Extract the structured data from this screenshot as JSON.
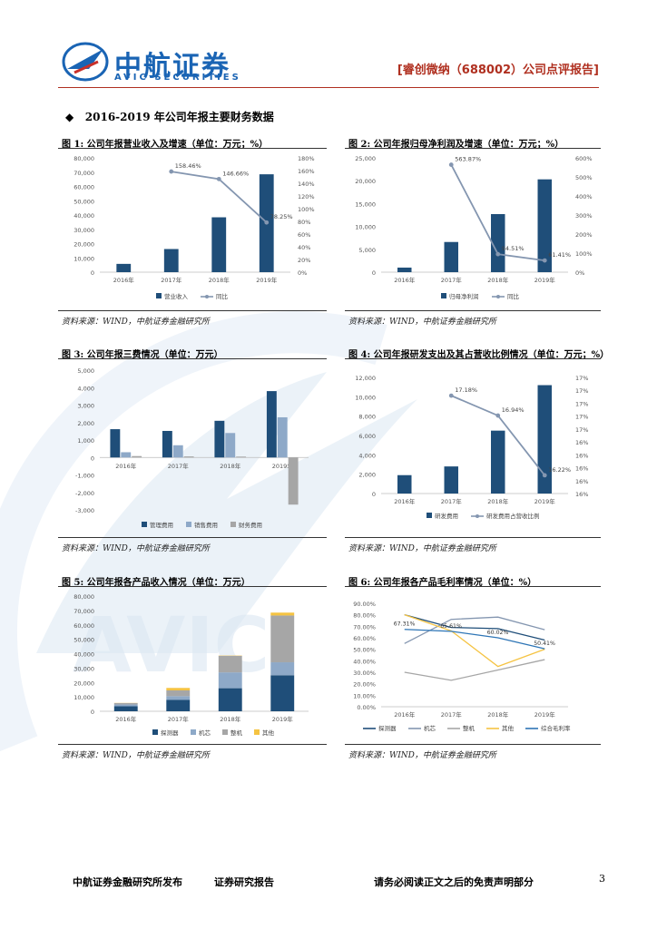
{
  "header": {
    "logo_cn": "中航证券",
    "logo_en": "AVIC SECURITIES",
    "report_title": "[睿创微纳（688002）公司点评报告]"
  },
  "section": {
    "title": "2016-2019 年公司年报主要财务数据"
  },
  "colors": {
    "navy": "#1f4e79",
    "lightblue": "#8ea9c8",
    "gray": "#a6a6a6",
    "yellow": "#f5c342",
    "line": "#8496b0",
    "red": "#b03020"
  },
  "charts": [
    {
      "title": "图 1: 公司年报营业收入及增速（单位：万元；%）",
      "source": "资料来源：WIND，中航证券金融研究所",
      "chart_data": {
        "type": "bar",
        "categories": [
          "2016年",
          "2017年",
          "2018年",
          "2019年"
        ],
        "series": [
          {
            "name": "营业收入",
            "kind": "bar",
            "axis": "left",
            "values": [
              5800,
              16200,
              38400,
              68500
            ]
          },
          {
            "name": "同比",
            "kind": "line",
            "axis": "right",
            "values": [
              null,
              158.46,
              146.66,
              78.25
            ],
            "labels": [
              "",
              "158.46%",
              "146.66%",
              "78.25%"
            ]
          }
        ],
        "left_ticks": [
          "0",
          "10,000",
          "20,000",
          "30,000",
          "40,000",
          "50,000",
          "60,000",
          "70,000",
          "80,000"
        ],
        "right_ticks": [
          "0%",
          "20%",
          "40%",
          "60%",
          "80%",
          "100%",
          "120%",
          "140%",
          "160%",
          "180%"
        ],
        "ylim": [
          0,
          80000
        ],
        "y2lim": [
          0,
          180
        ]
      }
    },
    {
      "title": "图 2: 公司年报归母净利润及增速（单位：万元；%）",
      "source": "资料来源：WIND，中航证券金融研究所",
      "chart_data": {
        "type": "bar",
        "categories": [
          "2016年",
          "2017年",
          "2018年",
          "2019年"
        ],
        "series": [
          {
            "name": "归母净利润",
            "kind": "bar",
            "axis": "left",
            "values": [
              1000,
              6600,
              12700,
              20300
            ]
          },
          {
            "name": "同比",
            "kind": "line",
            "axis": "right",
            "values": [
              null,
              563.87,
              94.51,
              61.41
            ],
            "labels": [
              "",
              "563.87%",
              "94.51%",
              "61.41%"
            ]
          }
        ],
        "left_ticks": [
          "0",
          "5,000",
          "10,000",
          "15,000",
          "20,000",
          "25,000"
        ],
        "right_ticks": [
          "0%",
          "100%",
          "200%",
          "300%",
          "400%",
          "500%",
          "600%"
        ],
        "ylim": [
          0,
          25000
        ],
        "y2lim": [
          0,
          600
        ]
      }
    },
    {
      "title": "图 3: 公司年报三费情况（单位：万元）",
      "source": "资料来源：WIND，中航证券金融研究所",
      "chart_data": {
        "type": "bar",
        "categories": [
          "2016年",
          "2017年",
          "2018年",
          "2019年"
        ],
        "series": [
          {
            "name": "管理费用",
            "kind": "bar",
            "axis": "left",
            "values": [
              1620,
              1520,
              2100,
              3800
            ]
          },
          {
            "name": "销售费用",
            "kind": "bar",
            "axis": "left",
            "values": [
              300,
              700,
              1400,
              2300
            ]
          },
          {
            "name": "财务费用",
            "kind": "bar",
            "axis": "left",
            "values": [
              80,
              60,
              50,
              -2700
            ]
          }
        ],
        "left_ticks": [
          "-3,000",
          "-2,000",
          "-1,000",
          "0",
          "1,000",
          "2,000",
          "3,000",
          "4,000",
          "5,000"
        ],
        "ylim": [
          -3000,
          5000
        ]
      }
    },
    {
      "title": "图 4: 公司年报研发支出及其占营收比例情况（单位：万元；%）",
      "source": "资料来源：WIND，中航证券金融研究所",
      "chart_data": {
        "type": "bar",
        "categories": [
          "2016年",
          "2017年",
          "2018年",
          "2019年"
        ],
        "series": [
          {
            "name": "研发费用",
            "kind": "bar",
            "axis": "left",
            "values": [
              1900,
              2800,
              6500,
              11200
            ]
          },
          {
            "name": "研发费用占营收比例",
            "kind": "line",
            "axis": "right",
            "values": [
              null,
              17.18,
              16.94,
              16.22
            ],
            "labels": [
              "",
              "17.18%",
              "16.94%",
              "16.22%"
            ]
          }
        ],
        "left_ticks": [
          "0",
          "2,000",
          "4,000",
          "6,000",
          "8,000",
          "10,000",
          "12,000"
        ],
        "right_ticks": [
          "16%",
          "16%",
          "16%",
          "16%",
          "16%",
          "17%",
          "17%",
          "17%",
          "17%",
          "17%"
        ],
        "ylim": [
          0,
          12000
        ],
        "y2lim": [
          16.0,
          17.4
        ]
      }
    },
    {
      "title": "图 5: 公司年报各产品收入情况（单位：万元）",
      "source": "资料来源：WIND，中航证券金融研究所",
      "chart_data": {
        "type": "bar",
        "stacked": true,
        "categories": [
          "2016年",
          "2017年",
          "2018年",
          "2019年"
        ],
        "series": [
          {
            "name": "探测器",
            "kind": "bar",
            "values": [
              3500,
              8000,
              16000,
              25000
            ]
          },
          {
            "name": "机芯",
            "kind": "bar",
            "values": [
              1200,
              2500,
              11000,
              9000
            ]
          },
          {
            "name": "整机",
            "kind": "bar",
            "values": [
              1000,
              4000,
              11500,
              32500
            ]
          },
          {
            "name": "其他",
            "kind": "bar",
            "values": [
              100,
              1700,
              200,
              2000
            ]
          }
        ],
        "left_ticks": [
          "0",
          "10,000",
          "20,000",
          "30,000",
          "40,000",
          "50,000",
          "60,000",
          "70,000",
          "80,000"
        ],
        "ylim": [
          0,
          80000
        ]
      }
    },
    {
      "title": "图 6: 公司年报各产品毛利率情况（单位：%）",
      "source": "资料来源：WIND，中航证券金融研究所",
      "chart_data": {
        "type": "line",
        "categories": [
          "2016年",
          "2017年",
          "2018年",
          "2019年"
        ],
        "series": [
          {
            "name": "探测器",
            "values": [
              80,
              69,
              68,
              58
            ]
          },
          {
            "name": "机芯",
            "values": [
              55,
              76,
              78,
              67
            ]
          },
          {
            "name": "整机",
            "values": [
              30,
              23,
              32,
              41
            ]
          },
          {
            "name": "其他",
            "values": [
              80,
              66,
              35,
              50
            ]
          },
          {
            "name": "综合毛利率",
            "values": [
              67.31,
              65.6,
              60.02,
              50.41
            ]
          }
        ],
        "data_labels": [
          {
            "text": "67.31%",
            "series": 4,
            "index": 0
          },
          {
            "text": "65.61%",
            "series": 4,
            "index": 1
          },
          {
            "text": "60.02%",
            "series": 4,
            "index": 2
          },
          {
            "text": "50.41%",
            "series": 4,
            "index": 3
          }
        ],
        "left_ticks": [
          "0.00%",
          "10.00%",
          "20.00%",
          "30.00%",
          "40.00%",
          "50.00%",
          "60.00%",
          "70.00%",
          "80.00%",
          "90.00%"
        ],
        "ylim": [
          0,
          90
        ]
      }
    }
  ],
  "footer": {
    "left": "中航证券金融研究所发布",
    "middle": "证券研究报告",
    "right": "请务必阅读正文之后的免责声明部分",
    "page": "3"
  }
}
